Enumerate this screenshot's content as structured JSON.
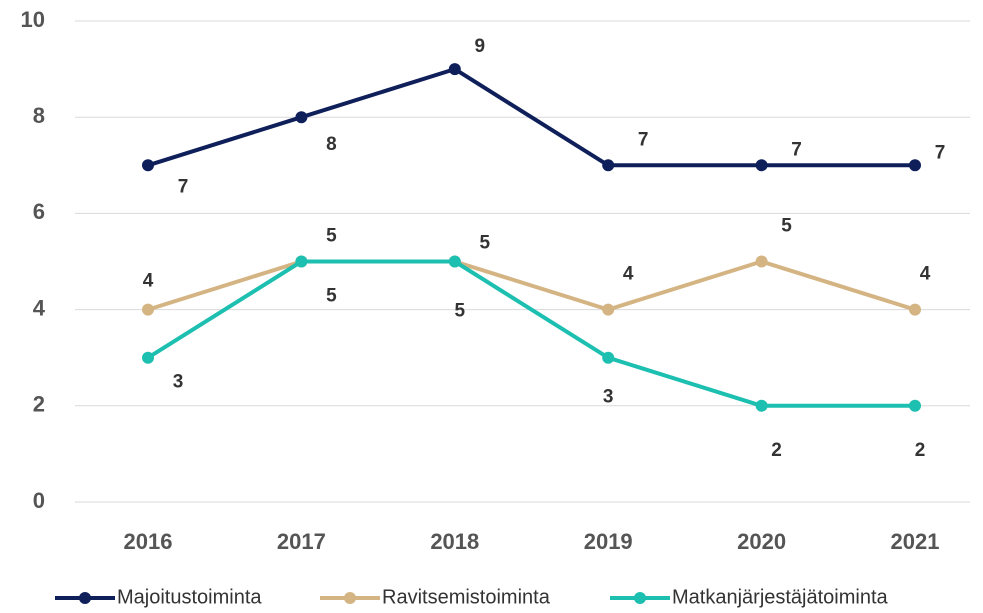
{
  "chart_data": {
    "type": "line",
    "categories": [
      "2016",
      "2017",
      "2018",
      "2019",
      "2020",
      "2021"
    ],
    "series": [
      {
        "name": "Majoitustoiminta",
        "color": "#0f1f5a",
        "values": [
          7,
          8,
          9,
          7,
          7,
          7
        ]
      },
      {
        "name": "Ravitsemistoiminta",
        "color": "#d4b483",
        "values": [
          4,
          5,
          5,
          4,
          5,
          4
        ]
      },
      {
        "name": "Matkanjärjestäjätoiminta",
        "color": "#1dbfb0",
        "values": [
          3,
          5,
          5,
          3,
          2,
          2
        ]
      }
    ],
    "ylim": [
      0,
      10
    ],
    "yticks": [
      0,
      2,
      4,
      6,
      8,
      10
    ],
    "grid": true,
    "legend": "bottom"
  }
}
